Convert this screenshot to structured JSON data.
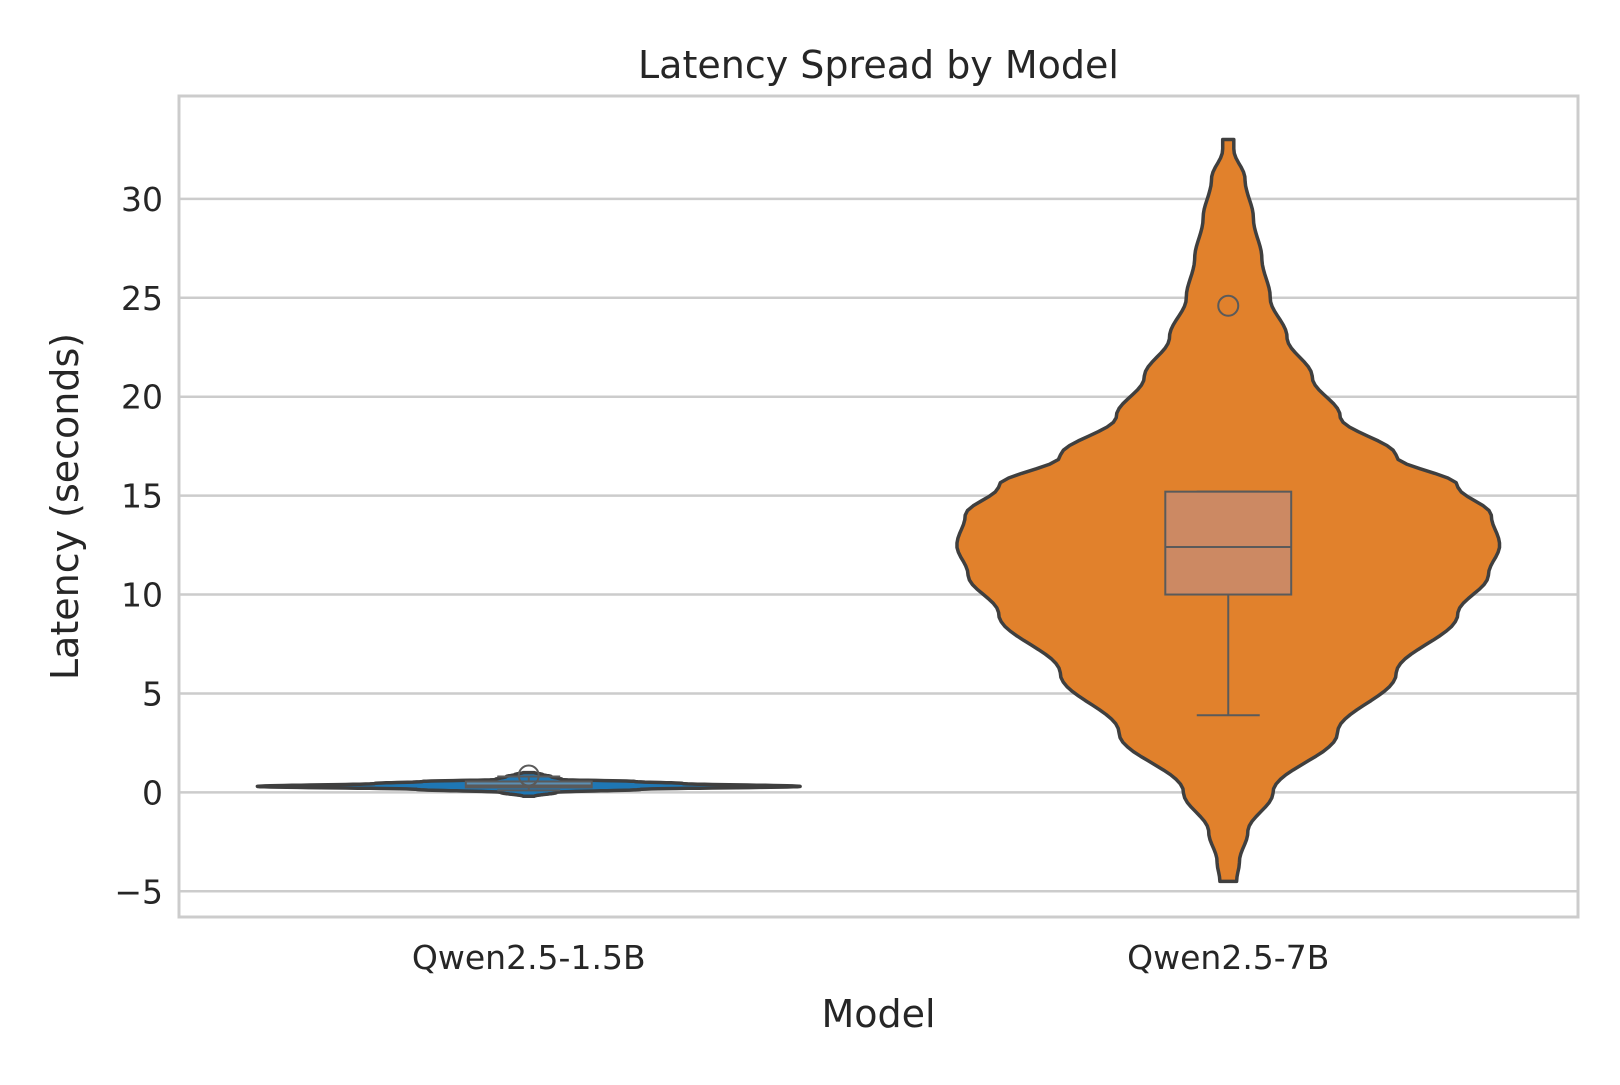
{
  "chart_data": {
    "type": "violin",
    "title": "Latency Spread by Model",
    "xlabel": "Model",
    "ylabel": "Latency (seconds)",
    "ylim": [
      -6.3,
      35.2
    ],
    "yticks": [
      -5,
      0,
      5,
      10,
      15,
      20,
      25,
      30
    ],
    "ytick_labels": [
      "−5",
      "0",
      "5",
      "10",
      "15",
      "20",
      "25",
      "30"
    ],
    "grid": true,
    "categories": [
      "Qwen2.5-1.5B",
      "Qwen2.5-7B"
    ],
    "series": [
      {
        "category": "Qwen2.5-1.5B",
        "color": "#1f77b4",
        "box_color": "#5c8fb3",
        "violin_range": [
          -0.2,
          1.0
        ],
        "violin_profile": [
          [
            -0.2,
            0.02
          ],
          [
            0.0,
            0.1
          ],
          [
            0.15,
            0.4
          ],
          [
            0.3,
            0.97
          ],
          [
            0.45,
            0.55
          ],
          [
            0.55,
            0.38
          ],
          [
            0.65,
            0.12
          ],
          [
            0.8,
            0.08
          ],
          [
            0.9,
            0.05
          ],
          [
            1.0,
            0.02
          ]
        ],
        "box": {
          "q1": 0.25,
          "median": 0.35,
          "q3": 0.55,
          "whisker_low": 0.1,
          "whisker_high": 0.8
        },
        "outliers": [
          0.85
        ]
      },
      {
        "category": "Qwen2.5-7B",
        "color": "#e1812c",
        "box_color": "#cc8963",
        "violin_range": [
          -4.5,
          33.0
        ],
        "violin_profile": [
          [
            -4.5,
            0.03
          ],
          [
            -3.5,
            0.04
          ],
          [
            -2.0,
            0.07
          ],
          [
            0.0,
            0.16
          ],
          [
            3.0,
            0.39
          ],
          [
            6.0,
            0.6
          ],
          [
            9.0,
            0.82
          ],
          [
            11.0,
            0.93
          ],
          [
            12.5,
            0.97
          ],
          [
            14.0,
            0.94
          ],
          [
            15.5,
            0.82
          ],
          [
            17.0,
            0.6
          ],
          [
            19.0,
            0.4
          ],
          [
            21.0,
            0.3
          ],
          [
            23.0,
            0.21
          ],
          [
            25.0,
            0.15
          ],
          [
            27.0,
            0.12
          ],
          [
            29.0,
            0.09
          ],
          [
            31.0,
            0.06
          ],
          [
            32.5,
            0.02
          ],
          [
            33.0,
            0.02
          ]
        ],
        "box": {
          "q1": 10.0,
          "median": 12.4,
          "q3": 15.2,
          "whisker_low": 3.9,
          "whisker_high": 15.2
        },
        "outliers": [
          24.6
        ]
      }
    ]
  }
}
